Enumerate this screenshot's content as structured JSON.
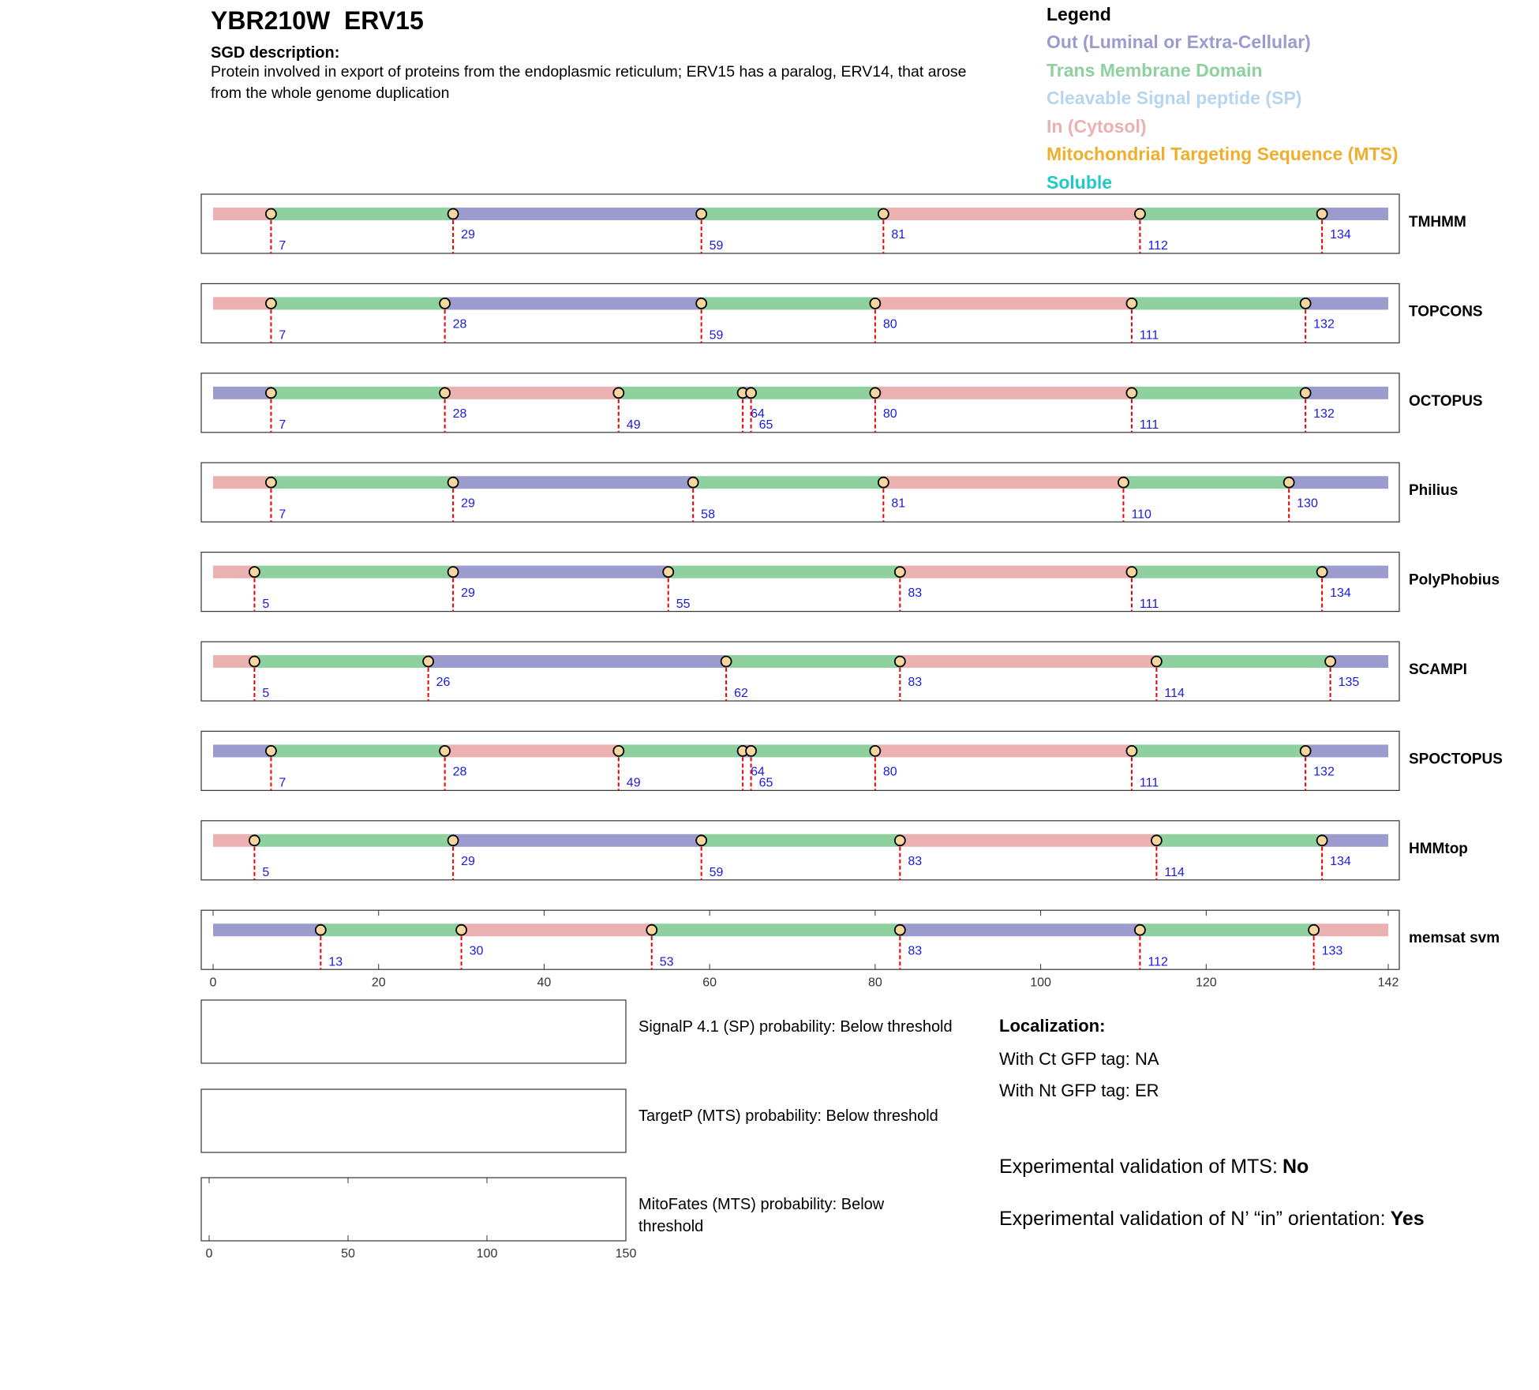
{
  "header": {
    "title": "YBR210W  ERV15",
    "description_label": "SGD description:",
    "description": "Protein involved in export of proteins from the endoplasmic reticulum; ERV15 has a paralog, ERV14, that arose from the whole genome duplication"
  },
  "legend": {
    "title": "Legend",
    "items": [
      {
        "label": "Out (Luminal or Extra-Cellular)",
        "color": "#9b9bcd"
      },
      {
        "label": "Trans Membrane Domain",
        "color": "#8ed19e"
      },
      {
        "label": "Cleavable Signal peptide (SP)",
        "color": "#b7d5ef"
      },
      {
        "label": "In (Cytosol)",
        "color": "#ebb0b0"
      },
      {
        "label": "Mitochondrial Targeting Sequence (MTS)",
        "color": "#efae2c"
      },
      {
        "label": "Soluble",
        "color": "#1fc9c9"
      }
    ]
  },
  "chart_data": [
    {
      "type": "topology",
      "xlim": [
        0,
        142
      ],
      "xticks": [
        0,
        20,
        40,
        60,
        80,
        100,
        120,
        142
      ],
      "series": [
        {
          "name": "TMHMM",
          "boundaries": [
            7,
            29,
            59,
            81,
            112,
            134
          ],
          "segment_colors": [
            "#ebb0b0",
            "#8ed19e",
            "#9b9bcd",
            "#8ed19e",
            "#ebb0b0",
            "#8ed19e",
            "#9b9bcd"
          ]
        },
        {
          "name": "TOPCONS",
          "boundaries": [
            7,
            28,
            59,
            80,
            111,
            132
          ],
          "segment_colors": [
            "#ebb0b0",
            "#8ed19e",
            "#9b9bcd",
            "#8ed19e",
            "#ebb0b0",
            "#8ed19e",
            "#9b9bcd"
          ]
        },
        {
          "name": "OCTOPUS",
          "boundaries": [
            7,
            28,
            49,
            64,
            65,
            80,
            111,
            132
          ],
          "segment_colors": [
            "#9b9bcd",
            "#8ed19e",
            "#ebb0b0",
            "#8ed19e",
            "#9b9bcd",
            "#8ed19e",
            "#ebb0b0",
            "#8ed19e",
            "#9b9bcd"
          ]
        },
        {
          "name": "Philius",
          "boundaries": [
            7,
            29,
            58,
            81,
            110,
            130
          ],
          "segment_colors": [
            "#ebb0b0",
            "#8ed19e",
            "#9b9bcd",
            "#8ed19e",
            "#ebb0b0",
            "#8ed19e",
            "#9b9bcd"
          ]
        },
        {
          "name": "PolyPhobius",
          "boundaries": [
            5,
            29,
            55,
            83,
            111,
            134
          ],
          "segment_colors": [
            "#ebb0b0",
            "#8ed19e",
            "#9b9bcd",
            "#8ed19e",
            "#ebb0b0",
            "#8ed19e",
            "#9b9bcd"
          ]
        },
        {
          "name": "SCAMPI",
          "boundaries": [
            5,
            26,
            62,
            83,
            114,
            135
          ],
          "segment_colors": [
            "#ebb0b0",
            "#8ed19e",
            "#9b9bcd",
            "#8ed19e",
            "#ebb0b0",
            "#8ed19e",
            "#9b9bcd"
          ]
        },
        {
          "name": "SPOCTOPUS",
          "boundaries": [
            7,
            28,
            49,
            64,
            65,
            80,
            111,
            132
          ],
          "segment_colors": [
            "#9b9bcd",
            "#8ed19e",
            "#ebb0b0",
            "#8ed19e",
            "#9b9bcd",
            "#8ed19e",
            "#ebb0b0",
            "#8ed19e",
            "#9b9bcd"
          ]
        },
        {
          "name": "HMMtop",
          "boundaries": [
            5,
            29,
            59,
            83,
            114,
            134
          ],
          "segment_colors": [
            "#ebb0b0",
            "#8ed19e",
            "#9b9bcd",
            "#8ed19e",
            "#ebb0b0",
            "#8ed19e",
            "#9b9bcd"
          ]
        },
        {
          "name": "memsat svm",
          "boundaries": [
            13,
            30,
            53,
            83,
            112,
            133
          ],
          "segment_colors": [
            "#9b9bcd",
            "#8ed19e",
            "#ebb0b0",
            "#8ed19e",
            "#9b9bcd",
            "#8ed19e",
            "#ebb0b0"
          ]
        }
      ]
    },
    {
      "type": "probability-panels",
      "xlim": [
        0,
        150
      ],
      "xticks": [
        0,
        50,
        100,
        150
      ],
      "panels": [
        "SignalP 4.1 (SP) probability: Below threshold",
        "TargetP (MTS) probability: Below threshold",
        "MitoFates (MTS) probability: Below threshold"
      ]
    }
  ],
  "localization": {
    "title": "Localization:",
    "lines": [
      "With Ct GFP tag: NA",
      "With Nt GFP tag: ER"
    ]
  },
  "validation": [
    {
      "label": "Experimental validation of MTS:",
      "value": "No"
    },
    {
      "label": "Experimental validation of N’ “in” orientation:",
      "value": "Yes"
    }
  ]
}
